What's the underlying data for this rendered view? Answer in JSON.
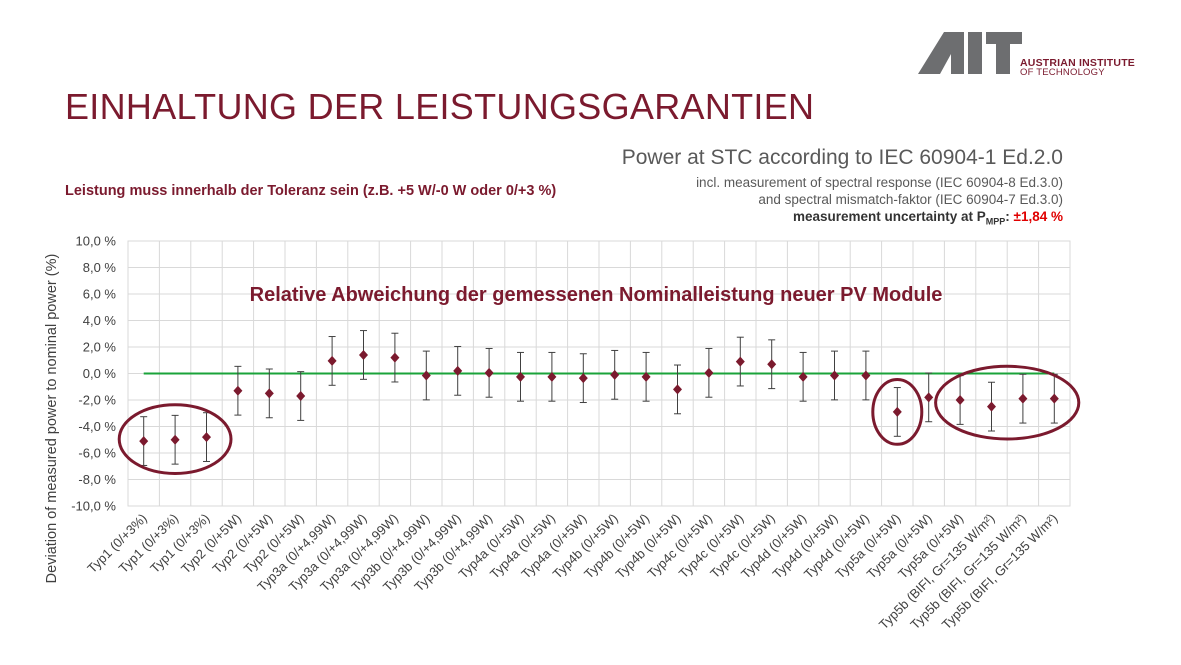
{
  "header": {
    "title": "EINHALTUNG DER LEISTUNGSGARANTIEN",
    "logo_institute_line1": "AUSTRIAN INSTITUTE",
    "logo_institute_line2": "OF TECHNOLOGY"
  },
  "measurement_info": {
    "title": "Power at STC according to IEC 60904-1 Ed.2.0",
    "line1": "incl. measurement of spectral response (IEC 60904-8 Ed.3.0)",
    "line2": "and spectral mismatch-faktor (IEC 60904-7 Ed.3.0)",
    "uncertainty_prefix": "measurement uncertainty at P",
    "uncertainty_sub": "MPP",
    "uncertainty_colon": ":",
    "uncertainty_value": "±1,84 %"
  },
  "tolerance_note": "Leistung muss innerhalb der Toleranz sein (z.B. +5 W/-0 W oder 0/+3 %)",
  "colors": {
    "brand": "#7b1a2e",
    "reference_line": "#1aa33a",
    "uncertainty_highlight": "#e00000"
  },
  "chart_data": {
    "type": "scatter",
    "title": "Relative Abweichung der gemessenen Nominalleistung neuer PV Module",
    "ylabel": "Deviation of measured power to nominal power (%)",
    "ylim": [
      -10,
      10
    ],
    "ytick_step": 2,
    "yticks": [
      "10,0 %",
      "8,0 %",
      "6,0 %",
      "4,0 %",
      "2,0 %",
      "0,0 %",
      "-2,0 %",
      "-4,0 %",
      "-6,0 %",
      "-8,0 %",
      "-10,0 %"
    ],
    "grid": true,
    "reference_line": 0,
    "error_bar": 1.84,
    "categories": [
      "Typ1 (0/+3%)",
      "Typ1 (0/+3%)",
      "Typ1 (0/+3%)",
      "Typ2 (0/+5W)",
      "Typ2 (0/+5W)",
      "Typ2 (0/+5W)",
      "Typ3a (0/+4,99W)",
      "Typ3a (0/+4,99W)",
      "Typ3a (0/+4,99W)",
      "Typ3b (0/+4,99W)",
      "Typ3b (0/+4,99W)",
      "Typ3b (0/+4,99W)",
      "Typ4a (0/+5W)",
      "Typ4a (0/+5W)",
      "Typ4a (0/+5W)",
      "Typ4b (0/+5W)",
      "Typ4b (0/+5W)",
      "Typ4b (0/+5W)",
      "Typ4c (0/+5W)",
      "Typ4c (0/+5W)",
      "Typ4c (0/+5W)",
      "Typ4d (0/+5W)",
      "Typ4d (0/+5W)",
      "Typ4d (0/+5W)",
      "Typ5a (0/+5W)",
      "Typ5a  (0/+5W)",
      "Typ5a  (0/+5W)",
      "Typ5b (BIFI, Gr=135 W/m²)",
      "Typ5b (BIFI, Gr=135 W/m²)",
      "Typ5b (BIFI, Gr=135 W/m²)"
    ],
    "values": [
      -5.1,
      -5.0,
      -4.8,
      -1.3,
      -1.5,
      -1.7,
      0.95,
      1.4,
      1.2,
      -0.15,
      0.2,
      0.05,
      -0.25,
      -0.25,
      -0.35,
      -0.1,
      -0.25,
      -1.2,
      0.05,
      0.9,
      0.7,
      -0.25,
      -0.15,
      -0.15,
      -2.9,
      -1.8,
      -2.0,
      -2.5,
      -1.9,
      -1.9
    ],
    "highlight_groups": [
      [
        0,
        2
      ],
      [
        24,
        24
      ],
      [
        26,
        29
      ]
    ]
  }
}
